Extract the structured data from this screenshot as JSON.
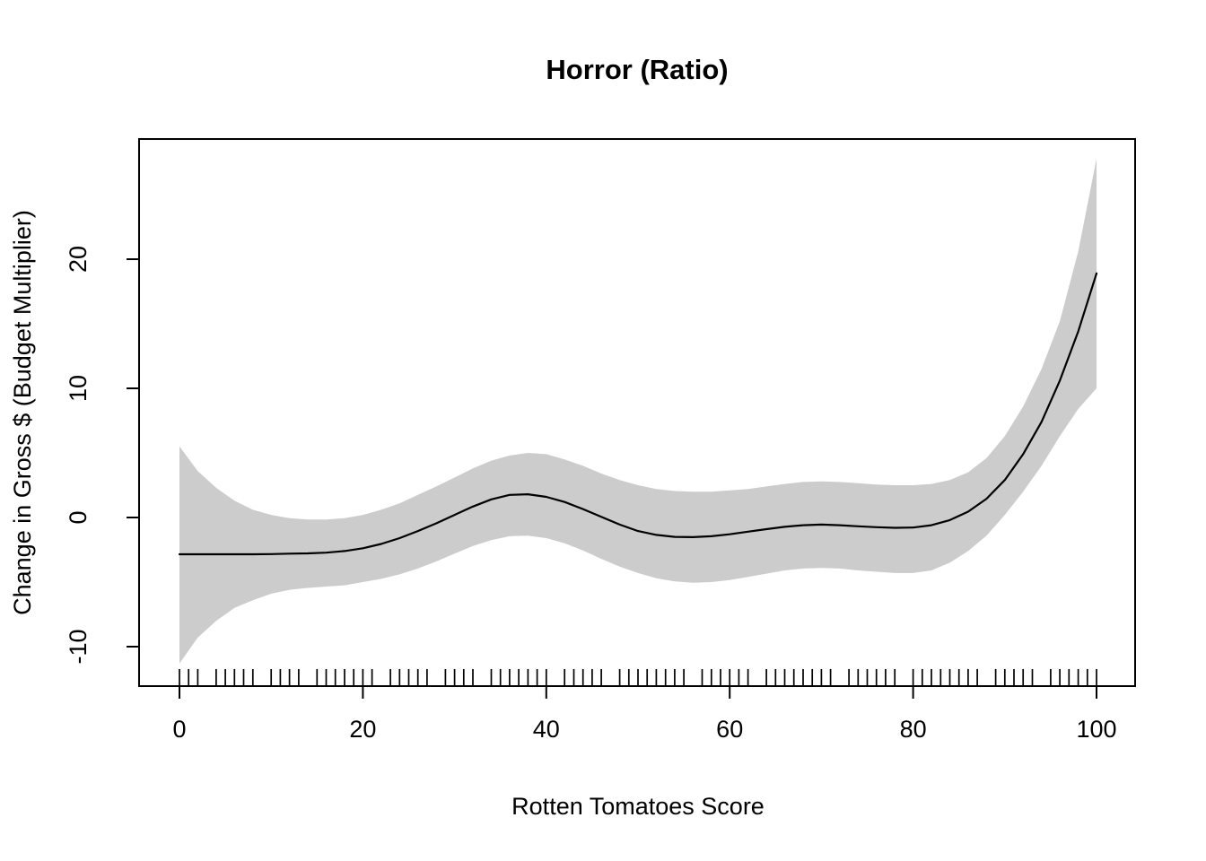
{
  "chart_data": {
    "type": "line",
    "title": "Horror (Ratio)",
    "xlabel": "Rotten Tomatoes Score",
    "ylabel": "Change in Gross $ (Budget Multiplier)",
    "xlim": [
      0,
      100
    ],
    "ylim": [
      -11.5,
      28.5
    ],
    "xticks": [
      0,
      20,
      40,
      60,
      80,
      100
    ],
    "yticks": [
      -10,
      0,
      10,
      20
    ],
    "grid": false,
    "legend": false,
    "band_color": "#cccccc",
    "line_color": "#000000",
    "x": [
      0,
      2,
      4,
      6,
      8,
      10,
      12,
      14,
      16,
      18,
      20,
      22,
      24,
      26,
      28,
      30,
      32,
      34,
      36,
      38,
      40,
      42,
      44,
      46,
      48,
      50,
      52,
      54,
      56,
      58,
      60,
      62,
      64,
      66,
      68,
      70,
      72,
      74,
      76,
      78,
      80,
      82,
      84,
      86,
      88,
      90,
      92,
      94,
      96,
      98,
      100
    ],
    "series": [
      {
        "name": "fit",
        "label": "smoothed change in gross (budget multiplier)",
        "values": [
          -2.85,
          -2.85,
          -2.85,
          -2.85,
          -2.85,
          -2.83,
          -2.8,
          -2.78,
          -2.72,
          -2.6,
          -2.38,
          -2.05,
          -1.6,
          -1.05,
          -0.45,
          0.2,
          0.85,
          1.4,
          1.75,
          1.8,
          1.6,
          1.2,
          0.65,
          0.05,
          -0.55,
          -1.05,
          -1.35,
          -1.5,
          -1.52,
          -1.45,
          -1.3,
          -1.1,
          -0.9,
          -0.72,
          -0.6,
          -0.55,
          -0.6,
          -0.68,
          -0.75,
          -0.8,
          -0.78,
          -0.6,
          -0.2,
          0.45,
          1.45,
          2.9,
          4.9,
          7.4,
          10.6,
          14.4,
          18.9
        ]
      },
      {
        "name": "ci_upper",
        "label": "confidence band upper edge",
        "values": [
          5.5,
          3.6,
          2.3,
          1.3,
          0.6,
          0.2,
          -0.05,
          -0.15,
          -0.15,
          -0.05,
          0.2,
          0.6,
          1.1,
          1.75,
          2.4,
          3.1,
          3.8,
          4.4,
          4.8,
          5.0,
          4.9,
          4.5,
          4.0,
          3.4,
          2.9,
          2.5,
          2.2,
          2.05,
          2.0,
          2.0,
          2.1,
          2.2,
          2.4,
          2.6,
          2.75,
          2.8,
          2.75,
          2.65,
          2.55,
          2.5,
          2.5,
          2.6,
          2.9,
          3.5,
          4.6,
          6.3,
          8.6,
          11.5,
          15.2,
          20.6,
          27.8
        ]
      },
      {
        "name": "ci_lower",
        "label": "confidence band lower edge",
        "values": [
          -11.3,
          -9.3,
          -8.0,
          -7.0,
          -6.4,
          -5.9,
          -5.6,
          -5.45,
          -5.35,
          -5.25,
          -5.0,
          -4.75,
          -4.4,
          -3.95,
          -3.4,
          -2.8,
          -2.2,
          -1.75,
          -1.45,
          -1.4,
          -1.6,
          -2.0,
          -2.55,
          -3.2,
          -3.8,
          -4.3,
          -4.7,
          -4.95,
          -5.05,
          -5.0,
          -4.85,
          -4.6,
          -4.35,
          -4.1,
          -3.95,
          -3.9,
          -3.95,
          -4.1,
          -4.2,
          -4.3,
          -4.3,
          -4.1,
          -3.5,
          -2.6,
          -1.4,
          0.2,
          2.0,
          4.0,
          6.3,
          8.4,
          10.0
        ]
      }
    ],
    "rug_x": [
      0,
      1,
      2,
      4,
      5,
      6,
      7,
      8,
      10,
      11,
      12,
      13,
      15,
      16,
      17,
      18,
      19,
      20,
      21,
      23,
      24,
      25,
      26,
      27,
      29,
      30,
      31,
      32,
      34,
      35,
      36,
      37,
      38,
      39,
      40,
      42,
      43,
      44,
      45,
      46,
      48,
      49,
      50,
      51,
      52,
      53,
      54,
      55,
      57,
      58,
      59,
      60,
      61,
      62,
      64,
      65,
      66,
      67,
      68,
      69,
      70,
      71,
      73,
      74,
      75,
      76,
      77,
      78,
      80,
      81,
      82,
      83,
      84,
      85,
      86,
      87,
      89,
      90,
      91,
      92,
      93,
      95,
      96,
      97,
      98,
      99,
      100
    ]
  }
}
